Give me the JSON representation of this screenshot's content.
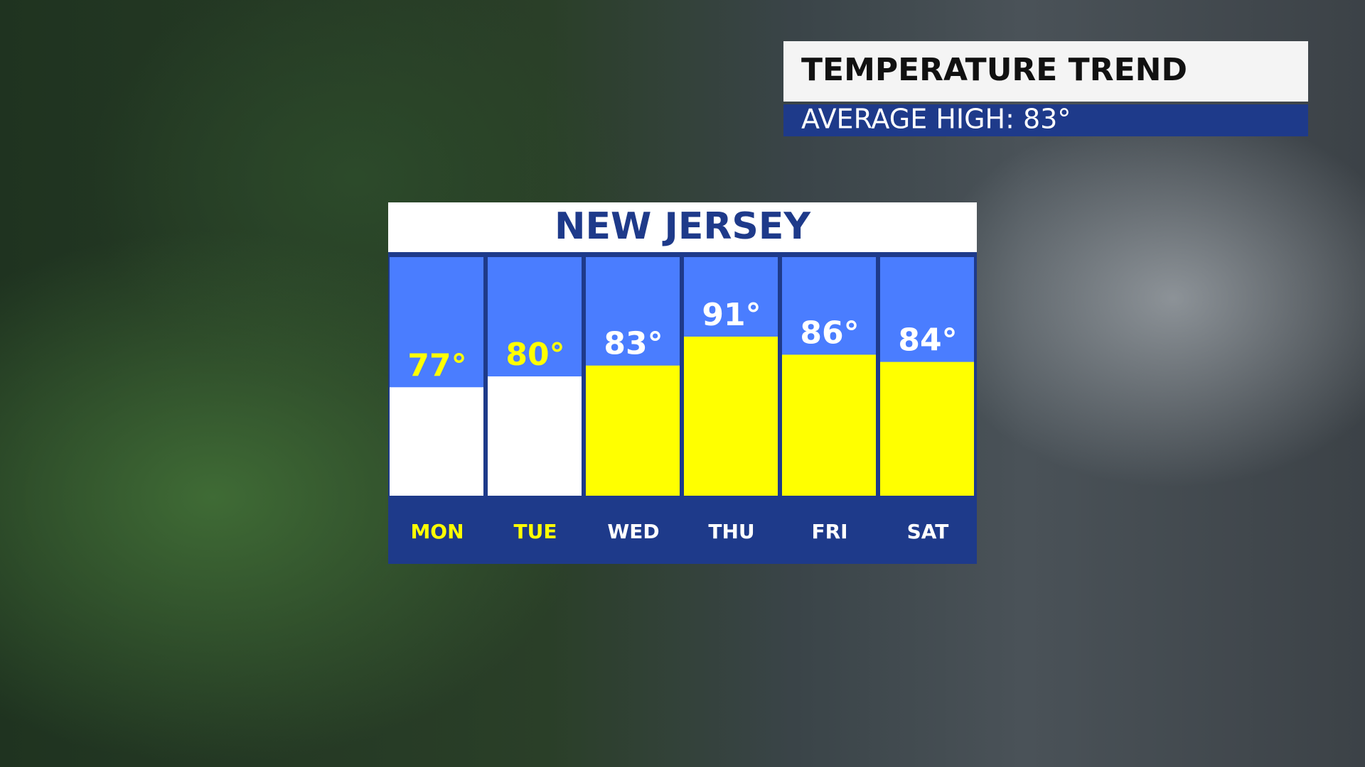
{
  "chart_data": {
    "type": "bar",
    "header": "TEMPERATURE TREND",
    "subtitle": "AVERAGE HIGH:  83°",
    "title": "NEW JERSEY",
    "categories": [
      "MON",
      "TUE",
      "WED",
      "THU",
      "FRI",
      "SAT"
    ],
    "values": [
      77,
      80,
      83,
      91,
      86,
      84
    ],
    "value_labels": [
      "77°",
      "80°",
      "83°",
      "91°",
      "86°",
      "84°"
    ],
    "colors": [
      "#ffffff",
      "#ffffff",
      "#ffff00",
      "#ffff00",
      "#ffff00",
      "#ffff00"
    ],
    "label_colors": [
      "#ffff00",
      "#ffff00",
      "#ffffff",
      "#ffffff",
      "#ffffff",
      "#ffffff"
    ],
    "ylim": [
      47,
      113
    ]
  }
}
